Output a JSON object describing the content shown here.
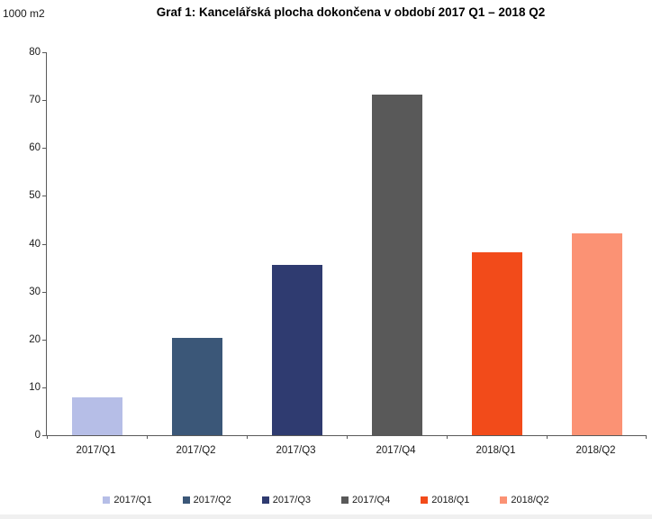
{
  "unit_label": "1000 m2",
  "title": "Graf 1: Kancelářská plocha dokončena v období 2017 Q1 – 2018 Q2",
  "chart_data": {
    "type": "bar",
    "title": "Graf 1: Kancelářská plocha dokončena v období 2017 Q1 – 2018 Q2",
    "ylabel": "1000 m2",
    "xlabel": "",
    "categories": [
      "2017/Q1",
      "2017/Q2",
      "2017/Q3",
      "2017/Q4",
      "2018/Q1",
      "2018/Q2"
    ],
    "values": [
      8.0,
      20.4,
      35.6,
      71.2,
      38.3,
      42.1
    ],
    "bar_colors": [
      "#b6bee7",
      "#3b5778",
      "#2f3b70",
      "#595959",
      "#f24b1a",
      "#fb9274"
    ],
    "ylim": [
      0,
      80
    ],
    "yticks": [
      0,
      10,
      20,
      30,
      40,
      50,
      60,
      70,
      80
    ],
    "grid": false,
    "legend_position": "bottom",
    "legend": [
      {
        "label": "2017/Q1",
        "color": "#b6bee7"
      },
      {
        "label": "2017/Q2",
        "color": "#3b5778"
      },
      {
        "label": "2017/Q3",
        "color": "#2f3b70"
      },
      {
        "label": "2017/Q4",
        "color": "#595959"
      },
      {
        "label": "2018/Q1",
        "color": "#f24b1a"
      },
      {
        "label": "2018/Q2",
        "color": "#fb9274"
      }
    ],
    "axis_color": "#595959"
  }
}
